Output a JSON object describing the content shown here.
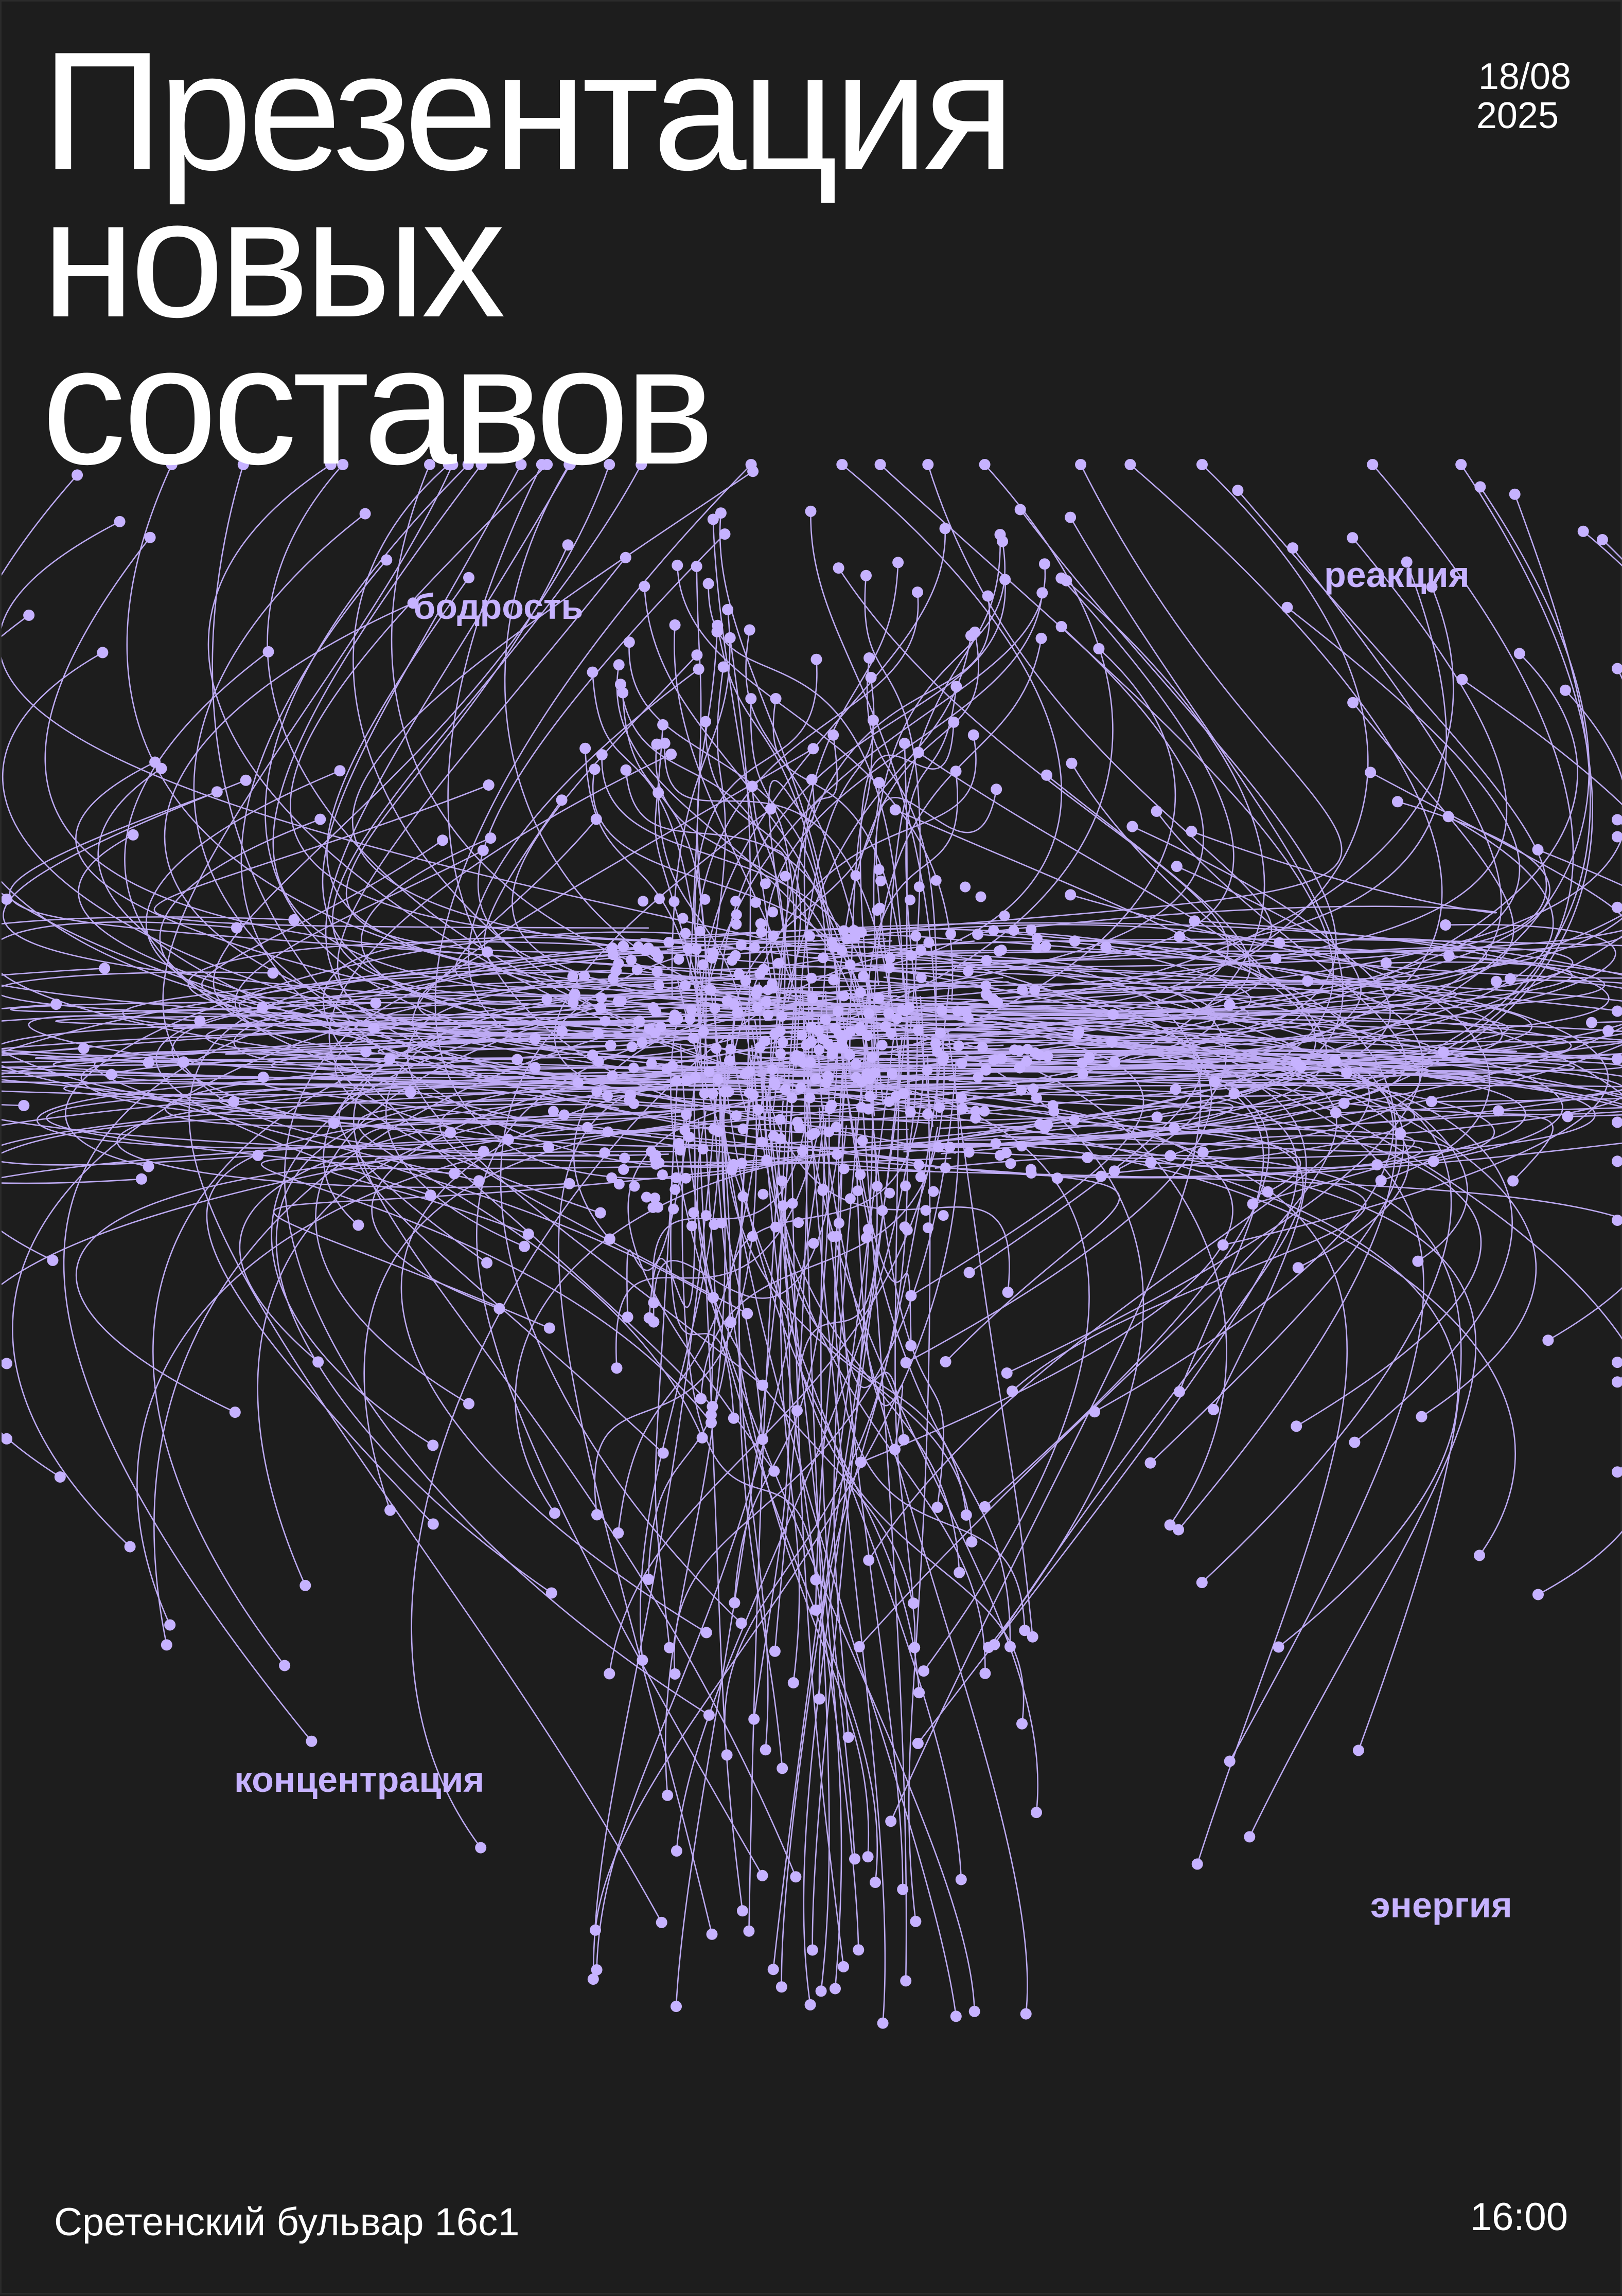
{
  "title": {
    "line1": "Презентация",
    "line2": "новых",
    "line3": "составов"
  },
  "date": {
    "day_month": "18/08",
    "year": "2025"
  },
  "tags": [
    "бодрость",
    "реакция",
    "концентрация",
    "энергия"
  ],
  "address": "Сретенский бульвар 16с1",
  "time": "16:00",
  "colors": {
    "background": "#1d1d1d",
    "text": "#ffffff",
    "accent": "#c6b2ff"
  }
}
